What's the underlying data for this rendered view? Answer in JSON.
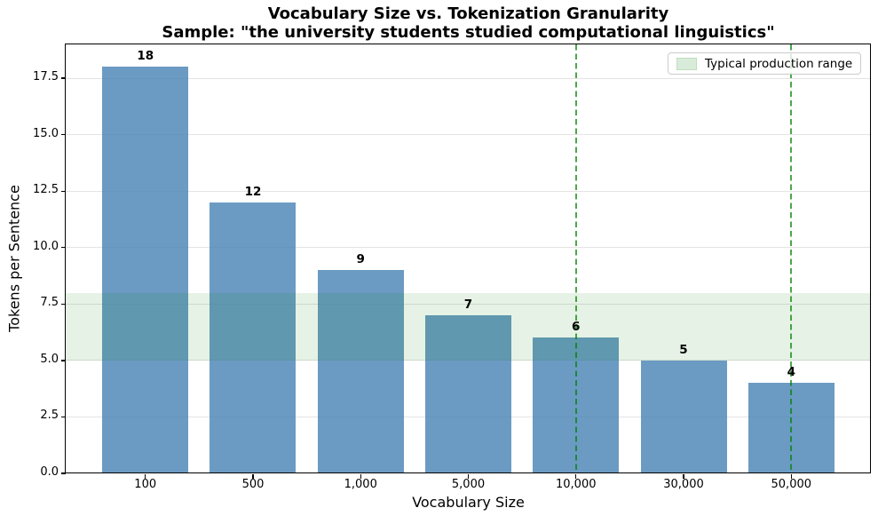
{
  "chart_data": {
    "type": "bar",
    "title": "Vocabulary Size vs. Tokenization Granularity",
    "subtitle": "Sample: \"the university students studied computational linguistics\"",
    "xlabel": "Vocabulary Size",
    "ylabel": "Tokens per Sentence",
    "categories": [
      "100",
      "500",
      "1,000",
      "5,000",
      "10,000",
      "30,000",
      "50,000"
    ],
    "values": [
      18,
      12,
      9,
      7,
      6,
      5,
      4
    ],
    "bar_value_labels": [
      "18",
      "12",
      "9",
      "7",
      "6",
      "5",
      "4"
    ],
    "ylim": [
      0,
      19
    ],
    "yticks": [
      0,
      2.5,
      5,
      7.5,
      10,
      12.5,
      15,
      17.5
    ],
    "ytick_labels": [
      "0.0",
      "2.5",
      "5.0",
      "7.5",
      "10.0",
      "12.5",
      "15.0",
      "17.5"
    ],
    "grid": "horizontal",
    "legend": {
      "label": "Typical production range",
      "position": "upper right"
    },
    "band": {
      "y_from": 5,
      "y_to": 8
    },
    "vlines_at_categories": [
      "10,000",
      "50,000"
    ],
    "colors": {
      "bar": "rgba(70,130,180,0.8)",
      "band": "rgba(0,128,0,0.10)",
      "vline": "rgba(0,128,0,0.7)",
      "gridline": "#e4e4e4",
      "legend_swatch": "rgba(0,128,0,0.15)"
    }
  }
}
